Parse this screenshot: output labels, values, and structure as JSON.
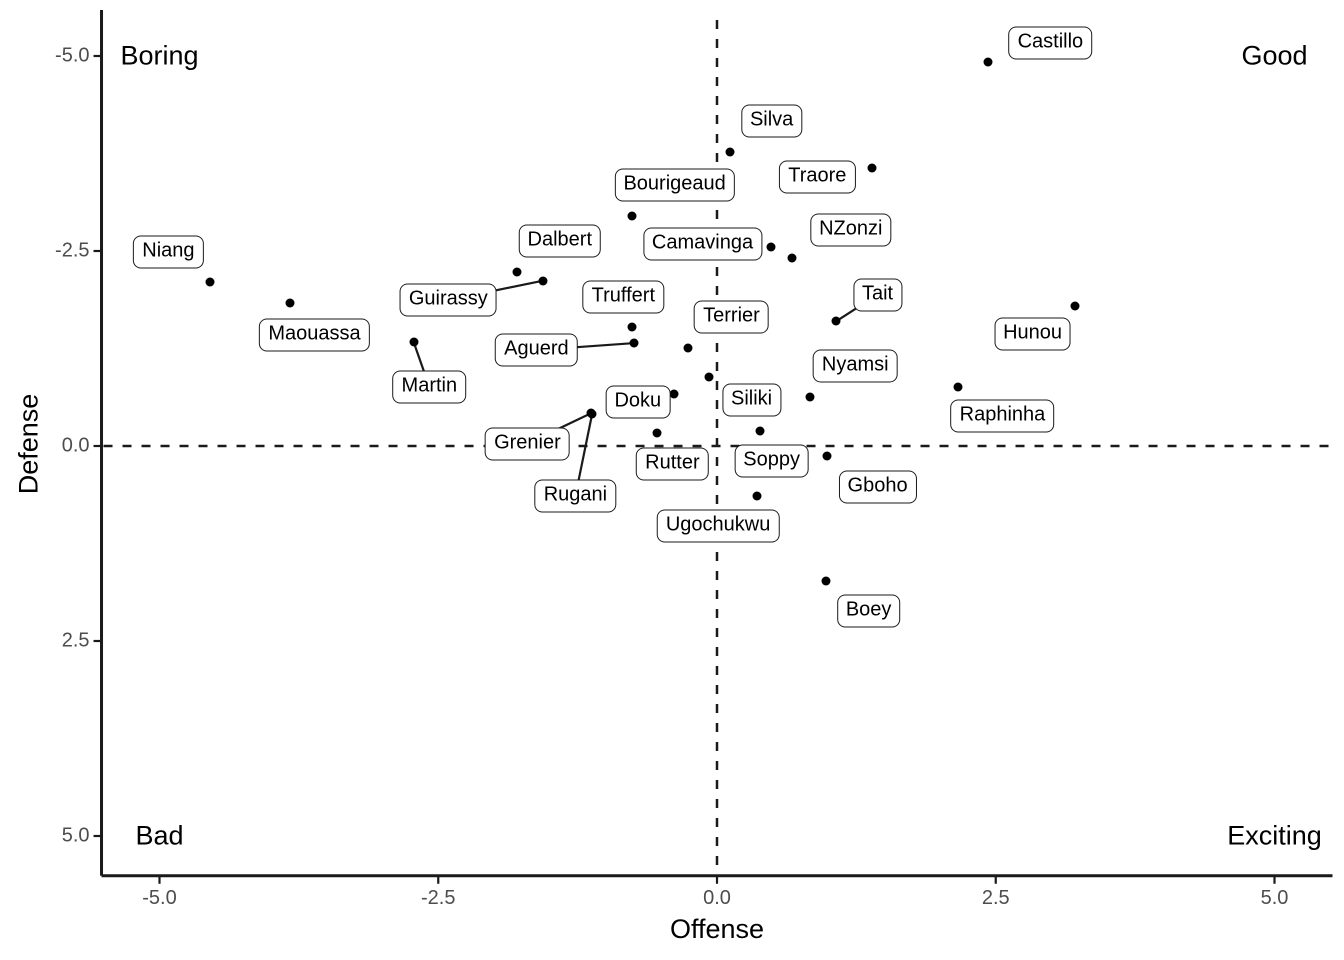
{
  "chart_data": {
    "type": "scatter",
    "title": "",
    "xlabel": "Offense",
    "ylabel": "Defense",
    "x_ticks": [
      -5.0,
      -2.5,
      0.0,
      2.5,
      5.0
    ],
    "x_tick_labels": [
      "-5.0",
      "-2.5",
      "0.0",
      "2.5",
      "5.0"
    ],
    "y_ticks": [
      -5.0,
      -2.5,
      0.0,
      2.5,
      5.0
    ],
    "y_tick_labels": [
      "-5.0",
      "-2.5",
      "0.0",
      "2.5",
      "5.0"
    ],
    "xlim": [
      -5.52,
      5.52
    ],
    "ylim": [
      -5.59,
      5.51
    ],
    "y_axis_reversed": true,
    "grid": false,
    "reference_lines": {
      "vertical_x": 0,
      "horizontal_y": 0,
      "style": "dashed"
    },
    "point_color": "#000000",
    "label_box_color": "#ffffff",
    "label_border_color": "#1a1a1a",
    "quadrant_labels": [
      {
        "text": "Boring",
        "x": -5.0,
        "y": -5.0
      },
      {
        "text": "Good",
        "x": 5.0,
        "y": -5.0
      },
      {
        "text": "Bad",
        "x": -5.0,
        "y": 5.0
      },
      {
        "text": "Exciting",
        "x": 5.0,
        "y": 5.0
      }
    ],
    "points": [
      {
        "label": "Niang",
        "x": -4.55,
        "y": -2.1,
        "label_x": -4.92,
        "label_y": -2.49,
        "segment": false
      },
      {
        "label": "Maouassa",
        "x": -3.83,
        "y": -1.83,
        "label_x": -3.61,
        "label_y": -1.42,
        "segment": false
      },
      {
        "label": "Castillo",
        "x": 2.43,
        "y": -4.92,
        "label_x": 2.99,
        "label_y": -5.17,
        "segment": false
      },
      {
        "label": "Silva",
        "x": 0.12,
        "y": -3.77,
        "label_x": 0.49,
        "label_y": -4.17,
        "segment": false
      },
      {
        "label": "Traore",
        "x": 1.39,
        "y": -3.57,
        "label_x": 0.9,
        "label_y": -3.45,
        "segment": false
      },
      {
        "label": "Bourigeaud",
        "x": -0.76,
        "y": -2.95,
        "label_x": -0.38,
        "label_y": -3.35,
        "segment": false
      },
      {
        "label": "Camavinga",
        "x": 0.48,
        "y": -2.55,
        "label_x": -0.13,
        "label_y": -2.59,
        "segment": false
      },
      {
        "label": "NZonzi",
        "x": 0.67,
        "y": -2.41,
        "label_x": 1.2,
        "label_y": -2.77,
        "segment": false
      },
      {
        "label": "Dalbert",
        "x": -1.79,
        "y": -2.23,
        "label_x": -1.41,
        "label_y": -2.63,
        "segment": false
      },
      {
        "label": "Guirassy",
        "x": -1.56,
        "y": -2.12,
        "label_x": -2.41,
        "label_y": -1.87,
        "segment": true
      },
      {
        "label": "Truffert",
        "x": -0.76,
        "y": -1.52,
        "label_x": -0.84,
        "label_y": -1.91,
        "segment": false
      },
      {
        "label": "Aguerd",
        "x": -0.74,
        "y": -1.32,
        "label_x": -1.62,
        "label_y": -1.23,
        "segment": true
      },
      {
        "label": "Martin",
        "x": -2.72,
        "y": -1.33,
        "label_x": -2.58,
        "label_y": -0.76,
        "segment": true
      },
      {
        "label": "Terrier",
        "x": -0.26,
        "y": -1.26,
        "label_x": 0.13,
        "label_y": -1.65,
        "segment": false
      },
      {
        "label": "Tait",
        "x": 1.07,
        "y": -1.6,
        "label_x": 1.44,
        "label_y": -1.94,
        "segment": true
      },
      {
        "label": "Hunou",
        "x": 3.21,
        "y": -1.79,
        "label_x": 2.83,
        "label_y": -1.44,
        "segment": false
      },
      {
        "label": "Raphinha",
        "x": 2.16,
        "y": -0.76,
        "label_x": 2.56,
        "label_y": -0.38,
        "segment": false
      },
      {
        "label": "Nyamsi",
        "x": 0.83,
        "y": -0.63,
        "label_x": 1.24,
        "label_y": -1.03,
        "segment": false
      },
      {
        "label": "Siliki",
        "x": -0.07,
        "y": -0.88,
        "label_x": 0.31,
        "label_y": -0.59,
        "segment": false
      },
      {
        "label": "Doku",
        "x": -0.39,
        "y": -0.67,
        "label_x": -0.71,
        "label_y": -0.56,
        "segment": false
      },
      {
        "label": "Grenier",
        "x": -1.13,
        "y": -0.42,
        "label_x": -1.7,
        "label_y": -0.03,
        "segment": true
      },
      {
        "label": "Rugani",
        "x": -1.12,
        "y": -0.41,
        "label_x": -1.27,
        "label_y": 0.64,
        "segment": true
      },
      {
        "label": "Rutter",
        "x": -0.54,
        "y": -0.17,
        "label_x": -0.4,
        "label_y": 0.23,
        "segment": false
      },
      {
        "label": "Soppy",
        "x": 0.39,
        "y": -0.19,
        "label_x": 0.49,
        "label_y": 0.19,
        "segment": false
      },
      {
        "label": "Gboho",
        "x": 0.99,
        "y": 0.13,
        "label_x": 1.44,
        "label_y": 0.53,
        "segment": false
      },
      {
        "label": "Ugochukwu",
        "x": 0.36,
        "y": 0.64,
        "label_x": 0.01,
        "label_y": 1.03,
        "segment": false
      },
      {
        "label": "Boey",
        "x": 0.98,
        "y": 1.73,
        "label_x": 1.36,
        "label_y": 2.12,
        "segment": false
      }
    ]
  }
}
